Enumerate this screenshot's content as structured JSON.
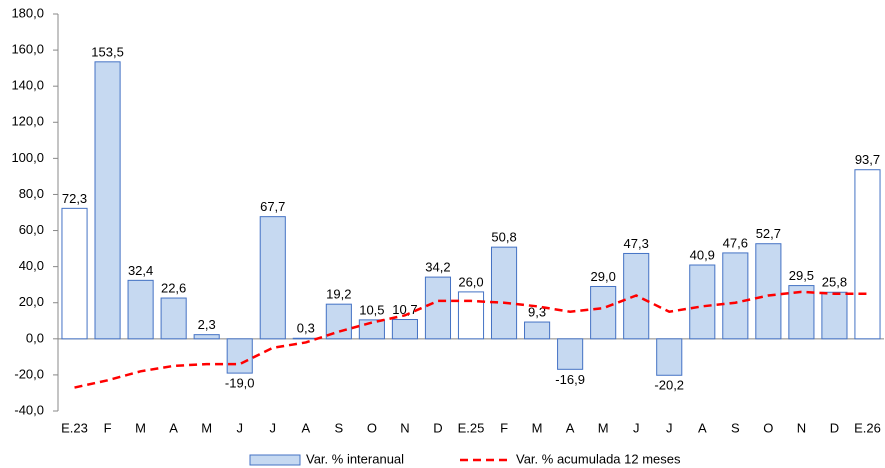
{
  "chart_data": {
    "type": "bar-line",
    "categories": [
      "E.23",
      "F",
      "M",
      "A",
      "M",
      "J",
      "J",
      "A",
      "S",
      "O",
      "N",
      "D",
      "E.25",
      "F",
      "M",
      "A",
      "M",
      "J",
      "J",
      "A",
      "S",
      "O",
      "N",
      "D",
      "E.26"
    ],
    "series": [
      {
        "name": "Var. % interanual",
        "type": "bar",
        "color": "#c6d9f1",
        "border": "#4472c4",
        "colors": [
          "#ffffff",
          "#c6d9f1",
          "#c6d9f1",
          "#c6d9f1",
          "#c6d9f1",
          "#c6d9f1",
          "#c6d9f1",
          "#c6d9f1",
          "#c6d9f1",
          "#c6d9f1",
          "#c6d9f1",
          "#c6d9f1",
          "#ffffff",
          "#c6d9f1",
          "#c6d9f1",
          "#c6d9f1",
          "#c6d9f1",
          "#c6d9f1",
          "#c6d9f1",
          "#c6d9f1",
          "#c6d9f1",
          "#c6d9f1",
          "#c6d9f1",
          "#c6d9f1",
          "#ffffff"
        ],
        "values": [
          72.3,
          153.5,
          32.4,
          22.6,
          2.3,
          -19.0,
          67.7,
          0.3,
          19.2,
          10.5,
          10.7,
          34.2,
          26.0,
          50.8,
          9.3,
          -16.9,
          29.0,
          47.3,
          -20.2,
          40.9,
          47.6,
          52.7,
          29.5,
          25.8,
          93.7
        ],
        "value_labels": [
          "72,3",
          "153,5",
          "32,4",
          "22,6",
          "2,3",
          "-19,0",
          "67,7",
          "0,3",
          "19,2",
          "10,5",
          "10,7",
          "34,2",
          "26,0",
          "50,8",
          "9,3",
          "-16,9",
          "29,0",
          "47,3",
          "-20,2",
          "40,9",
          "47,6",
          "52,7",
          "29,5",
          "25,8",
          "93,7"
        ]
      },
      {
        "name": "Var. % acumulada 12 meses",
        "type": "line",
        "color": "#ff0000",
        "dashed": true,
        "values": [
          -27,
          -23,
          -18,
          -15,
          -14,
          -14,
          -5,
          -2,
          4,
          9,
          13,
          21,
          21,
          20,
          18,
          15,
          17,
          24,
          15,
          18,
          20,
          24,
          26,
          25,
          25
        ]
      }
    ],
    "ylim": [
      -40,
      180
    ],
    "yticks": [
      {
        "value": -40,
        "label": "-40,0"
      },
      {
        "value": -20,
        "label": "-20,0"
      },
      {
        "value": 0,
        "label": "0,0"
      },
      {
        "value": 20,
        "label": "20,0"
      },
      {
        "value": 40,
        "label": "40,0"
      },
      {
        "value": 60,
        "label": "60,0"
      },
      {
        "value": 80,
        "label": "80,0"
      },
      {
        "value": 100,
        "label": "100,0"
      },
      {
        "value": 120,
        "label": "120,0"
      },
      {
        "value": 140,
        "label": "140,0"
      },
      {
        "value": 160,
        "label": "160,0"
      },
      {
        "value": 180,
        "label": "180,0"
      }
    ],
    "grid": false,
    "legend": "bottom"
  }
}
